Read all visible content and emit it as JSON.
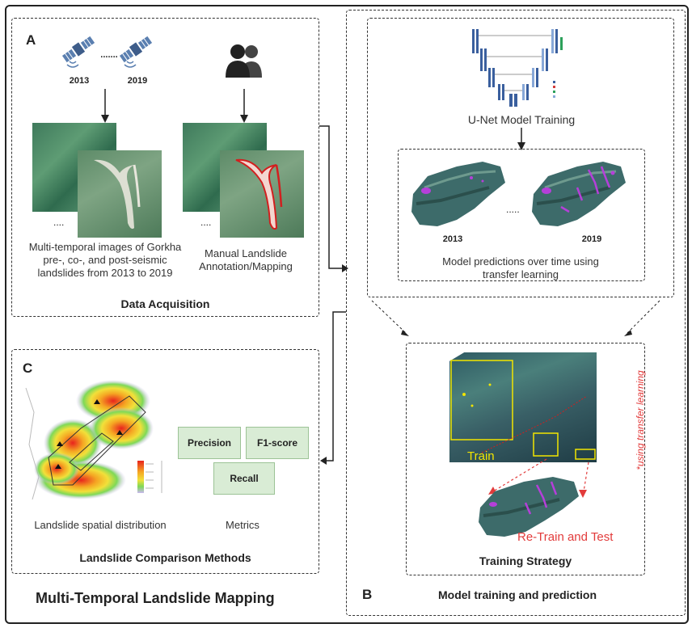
{
  "main_title": "Multi-Temporal Landslide Mapping",
  "panel_a": {
    "letter": "A",
    "year_start": "2013",
    "year_ellipsis": ".......",
    "year_end": "2019",
    "image_ellipsis": "....",
    "caption_left": "Multi-temporal images of Gorkha pre-, co-, and post-seismic landslides from 2013 to 2019",
    "caption_right": "Manual Landslide Annotation/Mapping",
    "title": "Data Acquisition"
  },
  "panel_b": {
    "letter": "B",
    "unet_caption": "U-Net Model Training",
    "pred_year_start": "2013",
    "pred_ellipsis": ".....",
    "pred_year_end": "2019",
    "pred_caption": "Model predictions over time using transfer learning",
    "train_label": "Train",
    "retrain_label": "Re-Train and Test",
    "transfer_note": "*using transfer learning",
    "strategy_title": "Training Strategy",
    "title": "Model training and prediction"
  },
  "panel_c": {
    "letter": "C",
    "metrics": {
      "precision": "Precision",
      "f1": "F1-score",
      "recall": "Recall"
    },
    "map_caption": "Landslide spatial distribution",
    "metrics_caption": "Metrics",
    "title": "Landslide Comparison Methods"
  },
  "colors": {
    "train_yellow": "#f2e500",
    "retrain_red": "#e23b3b",
    "outline_red": "#d21f1f",
    "metric_green": "#d9ecd5",
    "satellite_blue": "#5a7fb0",
    "prediction_magenta": "#b53fd9"
  },
  "icons": [
    "satellite-icon",
    "users-icon",
    "arrow-icon"
  ]
}
